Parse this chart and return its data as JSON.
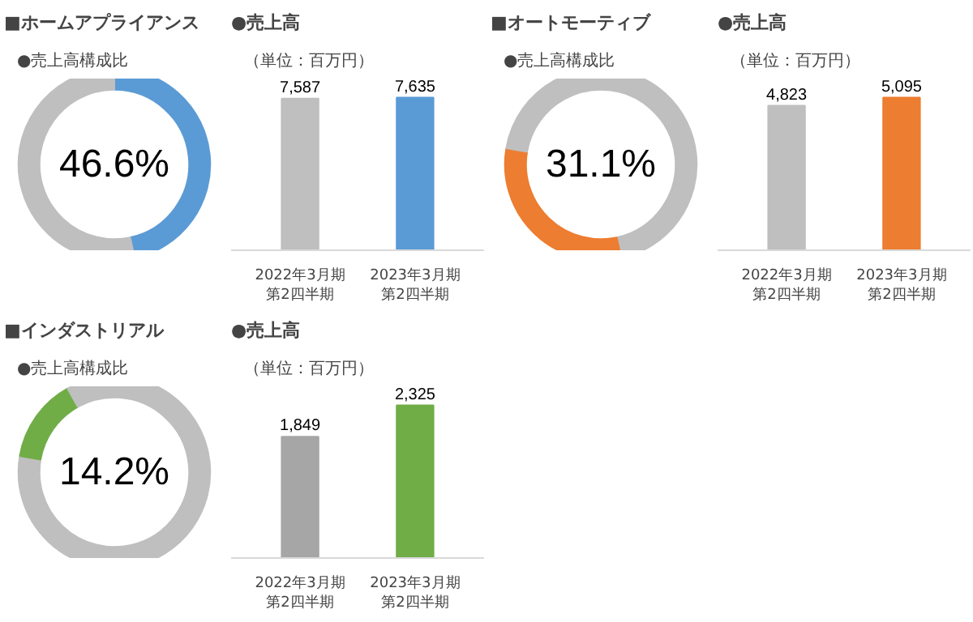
{
  "chart_data": [
    {
      "type": "donut",
      "title": "■ホームアプライアンス",
      "subtitle": "●売上高構成比",
      "categories": [
        null,
        null,
        null,
        null
      ],
      "values": [
        46.6,
        31.1,
        14.2,
        8.1
      ],
      "colors": [
        "#5b9bd5",
        "#bfbfbf",
        "#bfbfbf",
        "#bfbfbf"
      ],
      "annotations": [
        "46.6%"
      ]
    },
    {
      "type": "bar",
      "title": "●売上高",
      "subtitle": "（単位：百万円）",
      "categories": [
        "2022年3月期第2四半期",
        "2023年3月期第2四半期"
      ],
      "values": [
        7587,
        7635
      ],
      "colors": [
        "#bfbfbf",
        "#5b9bd5"
      ],
      "value_labels": [
        "7,587",
        "7,635"
      ],
      "tick_labels": "x"
    },
    {
      "type": "donut",
      "title": "■オートモーティブ",
      "subtitle": "●売上高構成比",
      "categories": [
        null,
        null,
        null,
        null
      ],
      "values": [
        46.6,
        31.1,
        14.2,
        8.1
      ],
      "colors": [
        "#bfbfbf",
        "#ed7d31",
        "#bfbfbf",
        "#bfbfbf"
      ],
      "annotations": [
        "31.1%"
      ]
    },
    {
      "type": "bar",
      "title": "●売上高",
      "subtitle": "（単位：百万円）",
      "categories": [
        "2022年3月期第2四半期",
        "2023年3月期第2四半期"
      ],
      "values": [
        4823,
        5095
      ],
      "colors": [
        "#bfbfbf",
        "#ed7d31"
      ],
      "value_labels": [
        "4,823",
        "5,095"
      ],
      "tick_labels": "x"
    },
    {
      "type": "donut",
      "title": "■インダストリアル",
      "subtitle": "●売上高構成比",
      "categories": [
        null,
        null,
        null,
        null
      ],
      "values": [
        46.6,
        31.1,
        14.2,
        8.1
      ],
      "colors": [
        "#bfbfbf",
        "#bfbfbf",
        "#70ad47",
        "#bfbfbf"
      ],
      "annotations": [
        "14.2%"
      ]
    },
    {
      "type": "bar",
      "title": "●売上高",
      "subtitle": "（単位：百万円）",
      "categories": [
        "2022年3月期第2四半期",
        "2023年3月期第2四半期"
      ],
      "values": [
        1849,
        2325
      ],
      "colors": [
        "#a6a6a6",
        "#70ad47"
      ],
      "value_labels": [
        "1,849",
        "2,325"
      ],
      "tick_labels": "x"
    }
  ]
}
